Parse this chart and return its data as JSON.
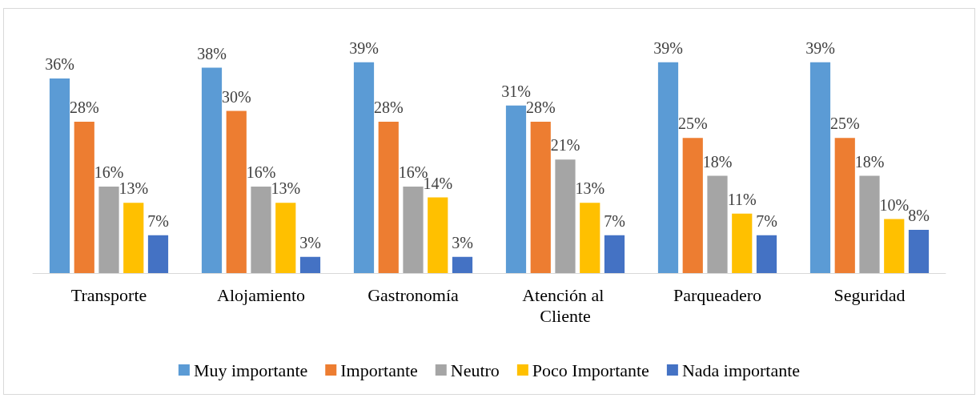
{
  "chart_data": {
    "type": "bar",
    "categories": [
      "Transporte",
      "Alojamiento",
      "Gastronomía",
      "Atención al Cliente",
      "Parqueadero",
      "Seguridad"
    ],
    "series": [
      {
        "name": "Muy importante",
        "color": "#5b9bd5",
        "values": [
          36,
          38,
          39,
          31,
          39,
          39
        ],
        "value_labels": [
          "36%",
          "38%",
          "39%",
          "31%",
          "39%",
          "39%"
        ]
      },
      {
        "name": "Importante",
        "color": "#ed7d31",
        "values": [
          28,
          30,
          28,
          28,
          25,
          25
        ],
        "value_labels": [
          "28%",
          "30%",
          "28%",
          "28%",
          "25%",
          "25%"
        ]
      },
      {
        "name": "Neutro",
        "color": "#a5a5a5",
        "values": [
          16,
          16,
          16,
          21,
          18,
          18
        ],
        "value_labels": [
          "16%",
          "16%",
          "16%",
          "21%",
          "18%",
          "18%"
        ]
      },
      {
        "name": "Poco Importante",
        "color": "#ffc000",
        "values": [
          13,
          13,
          14,
          13,
          11,
          10
        ],
        "value_labels": [
          "13%",
          "13%",
          "14%",
          "13%",
          "11%",
          "10%"
        ]
      },
      {
        "name": "Nada importante",
        "color": "#4472c4",
        "values": [
          7,
          3,
          3,
          7,
          7,
          8
        ],
        "value_labels": [
          "7%",
          "3%",
          "3%",
          "7%",
          "7%",
          "8%"
        ]
      }
    ],
    "legend": "bottom"
  }
}
